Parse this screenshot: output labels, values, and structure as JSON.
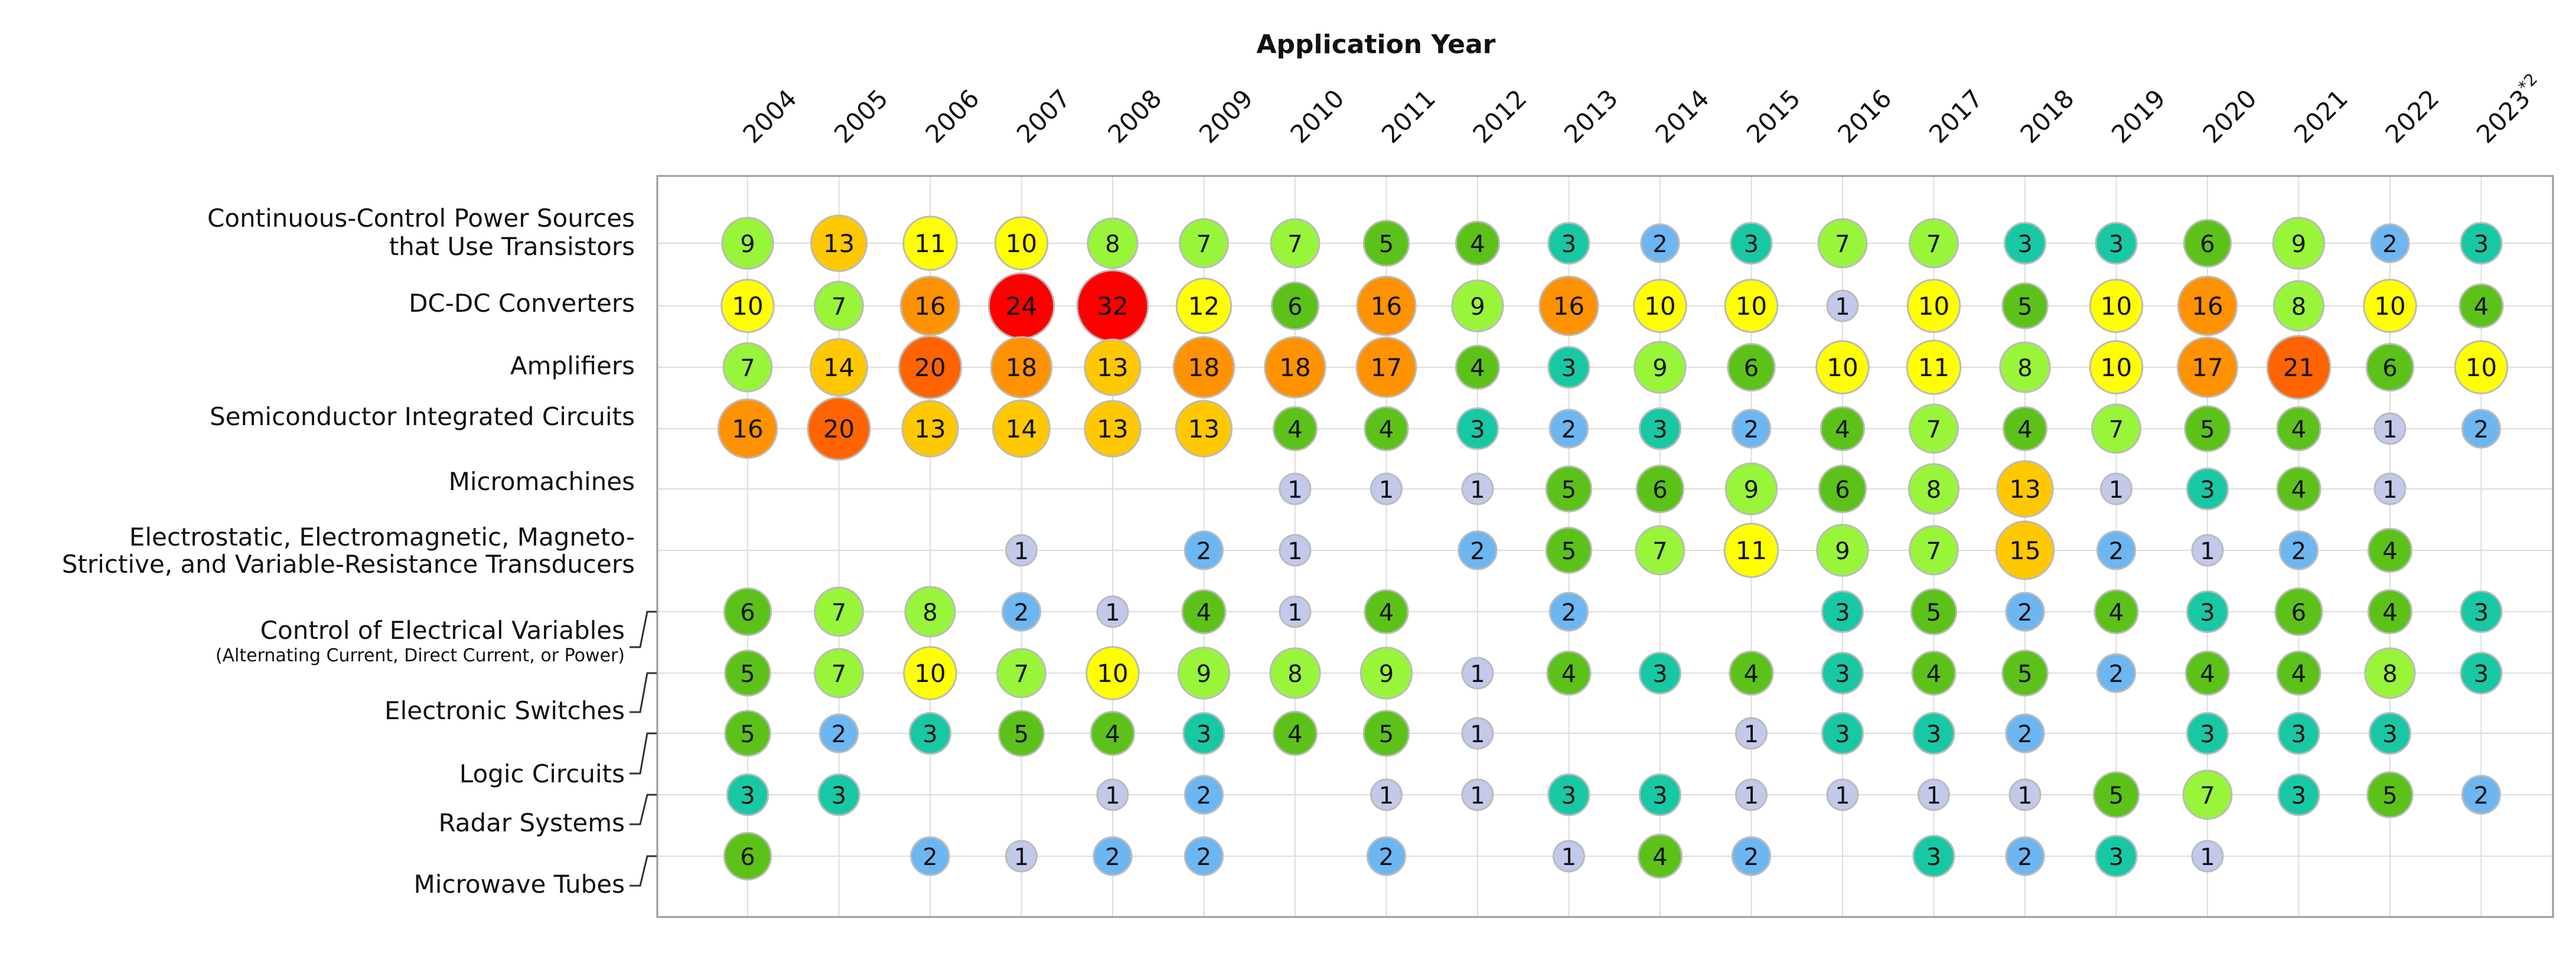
{
  "chart_data": {
    "type": "bubble-matrix",
    "title": "Application Year",
    "years": [
      "2004",
      "2005",
      "2006",
      "2007",
      "2008",
      "2009",
      "2010",
      "2011",
      "2012",
      "2013",
      "2014",
      "2015",
      "2016",
      "2017",
      "2018",
      "2019",
      "2020",
      "2021",
      "2022",
      "2023"
    ],
    "last_year_superscript": "*2",
    "rows": [
      {
        "label": [
          "Continuous-Control Power Sources",
          "that Use Transistors"
        ],
        "values": [
          9,
          13,
          11,
          10,
          8,
          7,
          7,
          5,
          4,
          3,
          2,
          3,
          7,
          7,
          3,
          3,
          6,
          9,
          2,
          3
        ]
      },
      {
        "label": [
          "DC-DC Converters"
        ],
        "values": [
          10,
          7,
          16,
          24,
          32,
          12,
          6,
          16,
          9,
          16,
          10,
          10,
          1,
          10,
          5,
          10,
          16,
          8,
          10,
          4
        ]
      },
      {
        "label": [
          "Amplifiers"
        ],
        "values": [
          7,
          14,
          20,
          18,
          13,
          18,
          18,
          17,
          4,
          3,
          9,
          6,
          10,
          11,
          8,
          10,
          17,
          21,
          6,
          10
        ]
      },
      {
        "label": [
          "Semiconductor Integrated Circuits"
        ],
        "values": [
          16,
          20,
          13,
          14,
          13,
          13,
          4,
          4,
          3,
          2,
          3,
          2,
          4,
          7,
          4,
          7,
          5,
          4,
          1,
          2
        ]
      },
      {
        "label": [
          "Micromachines"
        ],
        "values": [
          null,
          null,
          null,
          null,
          null,
          null,
          1,
          1,
          1,
          5,
          6,
          9,
          6,
          8,
          13,
          1,
          3,
          4,
          1,
          null
        ]
      },
      {
        "label": [
          "Electrostatic, Electromagnetic, Magneto-",
          "Strictive, and Variable-Resistance Transducers"
        ],
        "values": [
          null,
          null,
          null,
          1,
          null,
          2,
          1,
          null,
          2,
          5,
          7,
          11,
          9,
          7,
          15,
          2,
          1,
          2,
          4,
          null
        ]
      },
      {
        "label": [],
        "values": [
          6,
          7,
          8,
          2,
          1,
          4,
          1,
          4,
          null,
          2,
          null,
          null,
          3,
          5,
          2,
          4,
          3,
          6,
          4,
          3
        ]
      },
      {
        "label": [],
        "values": [
          5,
          7,
          10,
          7,
          10,
          9,
          8,
          9,
          1,
          4,
          3,
          4,
          3,
          4,
          5,
          2,
          4,
          4,
          8,
          3
        ]
      },
      {
        "label": [],
        "values": [
          5,
          2,
          3,
          5,
          4,
          3,
          4,
          5,
          1,
          null,
          null,
          1,
          3,
          3,
          2,
          null,
          3,
          3,
          3,
          null
        ]
      },
      {
        "label": [],
        "values": [
          3,
          3,
          null,
          null,
          1,
          2,
          null,
          1,
          1,
          3,
          3,
          1,
          1,
          1,
          1,
          5,
          7,
          3,
          5,
          2
        ]
      },
      {
        "label": [],
        "values": [
          6,
          null,
          2,
          1,
          2,
          2,
          null,
          2,
          null,
          1,
          4,
          2,
          null,
          3,
          2,
          3,
          1,
          null,
          null,
          null
        ]
      }
    ],
    "side_labels": [
      {
        "lines": [
          "Control of Electrical Variables",
          "(Alternating Current, Direct Current, or Power)"
        ],
        "row": 6
      },
      {
        "lines": [
          "Electronic Switches"
        ],
        "row": 7
      },
      {
        "lines": [
          "Logic Circuits"
        ],
        "row": 8
      },
      {
        "lines": [
          "Radar Systems"
        ],
        "row": 9
      },
      {
        "lines": [
          "Microwave Tubes"
        ],
        "row": 10
      }
    ],
    "color_scale": [
      {
        "min": 1,
        "max": 1,
        "color": "#c3c9ea"
      },
      {
        "min": 2,
        "max": 2,
        "color": "#6cb6f2"
      },
      {
        "min": 3,
        "max": 3,
        "color": "#18c8a4"
      },
      {
        "min": 4,
        "max": 6,
        "color": "#5cc21a"
      },
      {
        "min": 7,
        "max": 9,
        "color": "#98f53a"
      },
      {
        "min": 10,
        "max": 12,
        "color": "#ffff00"
      },
      {
        "min": 13,
        "max": 15,
        "color": "#ffc800"
      },
      {
        "min": 16,
        "max": 18,
        "color": "#ff9200"
      },
      {
        "min": 19,
        "max": 22,
        "color": "#ff6400"
      },
      {
        "min": 23,
        "max": 99,
        "color": "#ff0000"
      }
    ],
    "grid": true
  }
}
